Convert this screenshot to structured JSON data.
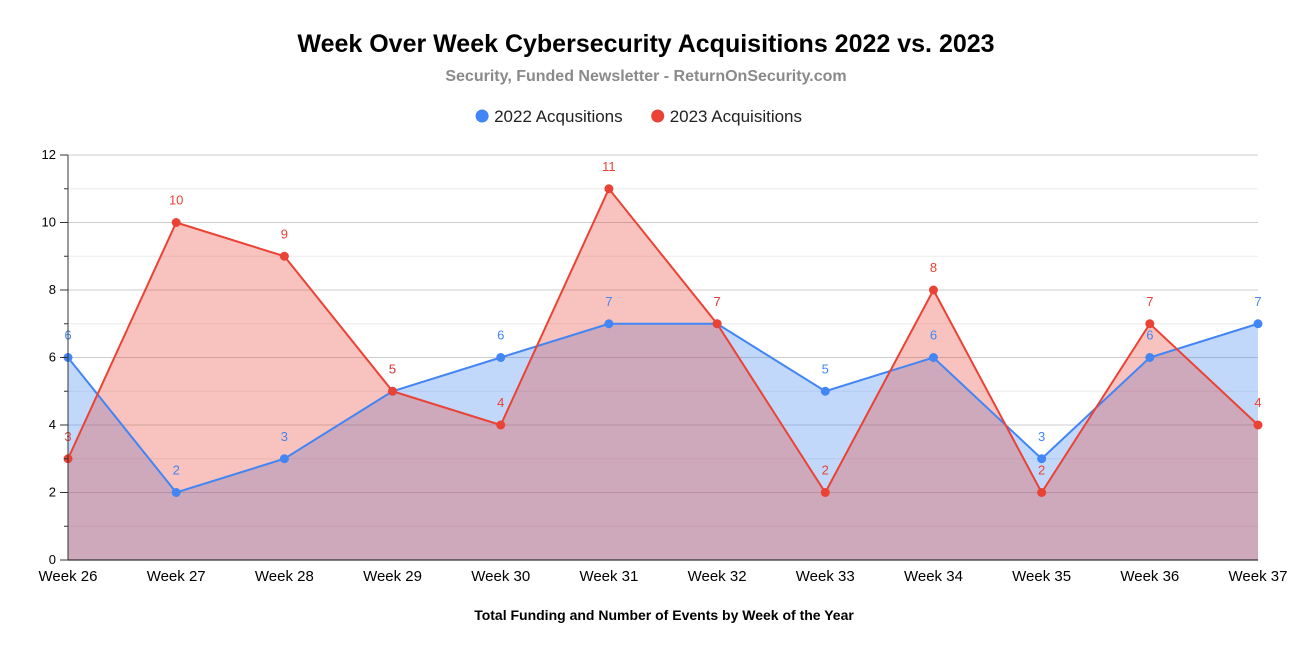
{
  "chart_data": {
    "type": "area",
    "title": "Week Over Week Cybersecurity Acquisitions 2022 vs. 2023",
    "subtitle": "Security, Funded Newsletter - ReturnOnSecurity.com",
    "xlabel": "Total Funding and Number of Events by Week of the Year",
    "ylabel": "",
    "categories": [
      "Week 26",
      "Week 27",
      "Week 28",
      "Week 29",
      "Week 30",
      "Week 31",
      "Week 32",
      "Week 33",
      "Week 34",
      "Week 35",
      "Week 36",
      "Week 37"
    ],
    "ylim": [
      0,
      12
    ],
    "yticks": [
      "0",
      "2",
      "4",
      "6",
      "8",
      "10",
      "12"
    ],
    "grid": true,
    "legend_position": "top",
    "series": [
      {
        "name": "2022 Acqusitions",
        "color": "#4285f4",
        "values": [
          6,
          2,
          3,
          5,
          6,
          7,
          7,
          5,
          6,
          3,
          6,
          7
        ]
      },
      {
        "name": "2023 Acquisitions",
        "color": "#ea4335",
        "values": [
          3,
          10,
          9,
          5,
          4,
          11,
          7,
          2,
          8,
          2,
          7,
          4
        ]
      }
    ]
  }
}
